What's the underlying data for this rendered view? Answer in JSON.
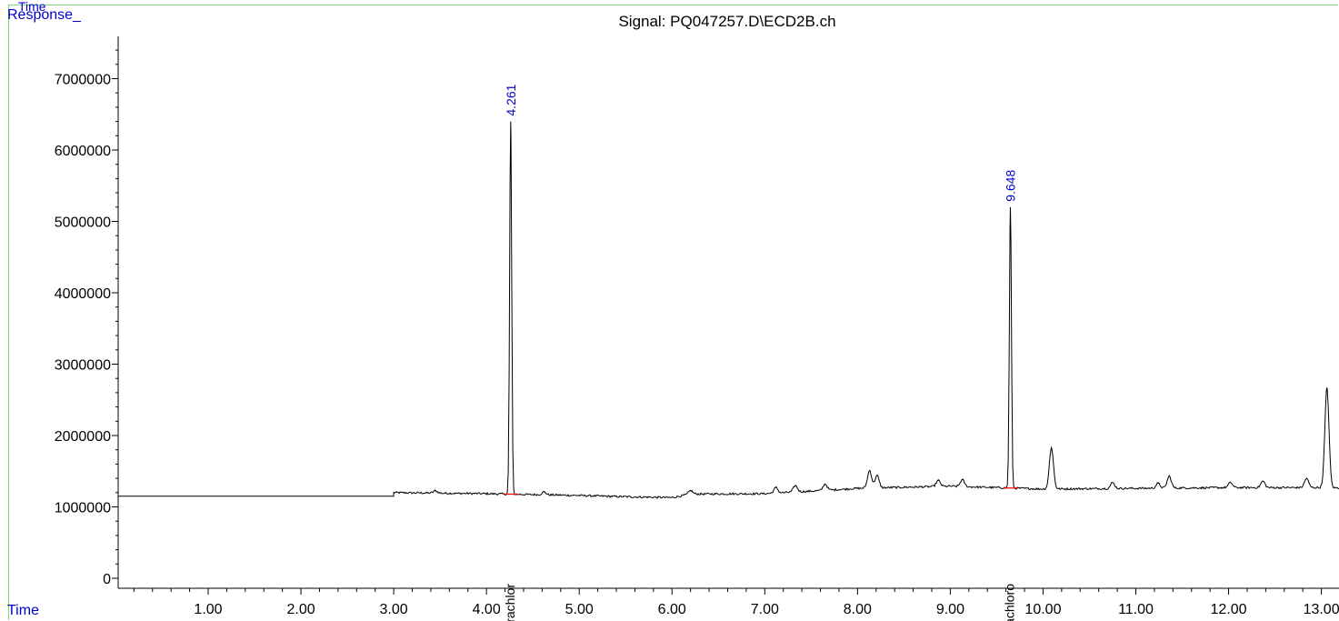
{
  "header": {
    "top_label": "Time",
    "y_axis_label": "Response_",
    "x_axis_label": "Time"
  },
  "chart_data": {
    "type": "line",
    "title": "Signal: PQ047257.D\\ECD2B.ch",
    "xlabel": "Time",
    "ylabel": "Response_",
    "xlim": [
      0.0,
      13.33
    ],
    "ylim": [
      0,
      7600000
    ],
    "x_ticks": [
      1.0,
      2.0,
      3.0,
      4.0,
      5.0,
      6.0,
      7.0,
      8.0,
      9.0,
      10.0,
      11.0,
      12.0,
      13.0
    ],
    "x_tick_labels": [
      "1.00",
      "2.00",
      "3.00",
      "4.00",
      "5.00",
      "6.00",
      "7.00",
      "8.00",
      "9.00",
      "10.00",
      "11.00",
      "12.00",
      "13.00"
    ],
    "y_ticks": [
      0,
      1000000,
      2000000,
      3000000,
      4000000,
      5000000,
      6000000,
      7000000
    ],
    "y_tick_labels": [
      "0",
      "1000000",
      "2000000",
      "3000000",
      "4000000",
      "5000000",
      "6000000",
      "7000000"
    ],
    "baseline": {
      "flat_level": 1150000,
      "signal_start": 3.0,
      "points": [
        [
          3.0,
          1200000
        ],
        [
          4.0,
          1185000
        ],
        [
          5.0,
          1160000
        ],
        [
          5.4,
          1145000
        ],
        [
          6.0,
          1130000
        ],
        [
          6.2,
          1180000
        ],
        [
          7.0,
          1185000
        ],
        [
          7.5,
          1220000
        ],
        [
          8.0,
          1260000
        ],
        [
          9.0,
          1290000
        ],
        [
          9.5,
          1270000
        ],
        [
          10.0,
          1250000
        ],
        [
          11.0,
          1260000
        ],
        [
          12.0,
          1270000
        ],
        [
          13.0,
          1270000
        ],
        [
          13.33,
          1260000
        ]
      ]
    },
    "peaks": [
      {
        "rt": 4.261,
        "height": 6400000,
        "label": "4.261",
        "compound": "Tetrachlor"
      },
      {
        "rt": 9.648,
        "height": 5200000,
        "label": "9.648",
        "compound": "Decachloro"
      },
      {
        "rt": 10.09,
        "height": 1830000
      },
      {
        "rt": 8.13,
        "height": 1510000
      },
      {
        "rt": 8.21,
        "height": 1440000
      },
      {
        "rt": 11.36,
        "height": 1430000
      },
      {
        "rt": 12.84,
        "height": 1400000
      },
      {
        "rt": 13.06,
        "height": 2670000
      },
      {
        "rt": 9.13,
        "height": 1380000
      },
      {
        "rt": 8.87,
        "height": 1370000
      },
      {
        "rt": 12.37,
        "height": 1360000
      },
      {
        "rt": 12.02,
        "height": 1340000
      },
      {
        "rt": 10.75,
        "height": 1340000
      },
      {
        "rt": 11.24,
        "height": 1330000
      },
      {
        "rt": 7.65,
        "height": 1320000
      },
      {
        "rt": 7.33,
        "height": 1300000
      },
      {
        "rt": 7.12,
        "height": 1270000
      },
      {
        "rt": 6.2,
        "height": 1230000
      },
      {
        "rt": 4.62,
        "height": 1210000
      },
      {
        "rt": 3.45,
        "height": 1225000
      }
    ],
    "colors": {
      "trace": "#000000",
      "annotation": "#0000cc",
      "integration_marker": "#ff0000",
      "frame": "#7fd87f"
    },
    "grid": false
  }
}
